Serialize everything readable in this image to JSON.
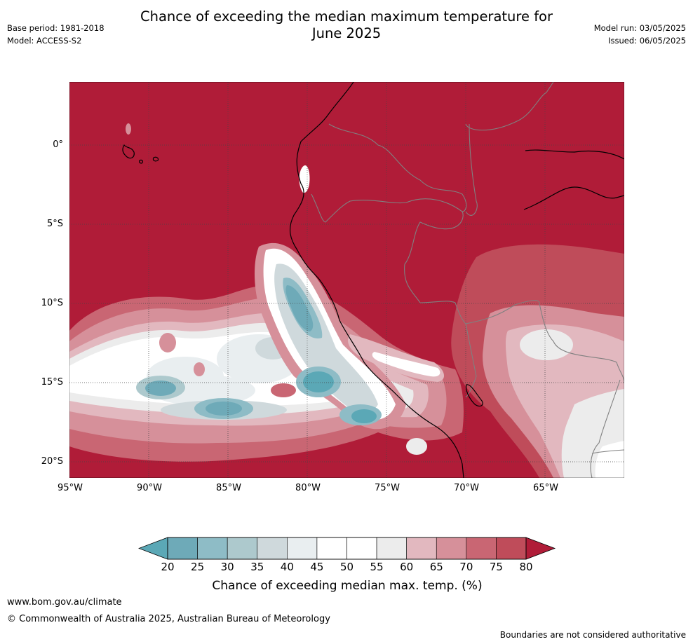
{
  "title": "Chance of exceeding the median maximum temperature for June 2025",
  "title_line1": "Chance of exceeding the median maximum temperature for",
  "title_line2": "June 2025",
  "meta": {
    "base_period": "Base period: 1981-2018",
    "model": "Model: ACCESS-S2",
    "model_run": "Model run: 03/05/2025",
    "issued": "Issued: 06/05/2025"
  },
  "map": {
    "lat_labels": [
      "0°",
      "5°S",
      "10°S",
      "15°S",
      "20°S"
    ],
    "lon_labels": [
      "95°W",
      "90°W",
      "85°W",
      "80°W",
      "75°W",
      "70°W",
      "65°W"
    ]
  },
  "colorbar": {
    "ticks": [
      "20",
      "25",
      "30",
      "35",
      "40",
      "45",
      "50",
      "55",
      "60",
      "65",
      "70",
      "75",
      "80"
    ],
    "colors": [
      "#5ba8b6",
      "#6eaab8",
      "#8ebcc6",
      "#adc9cd",
      "#cfd9dc",
      "#e9eef0",
      "#ffffff",
      "#ffffff",
      "#ececec",
      "#e2b8bf",
      "#d6909a",
      "#c96673",
      "#bf4c5a",
      "#b01c38"
    ],
    "label": "Chance of exceeding median max. temp. (%)"
  },
  "footer": {
    "url": "www.bom.gov.au/climate",
    "copyright": "© Commonwealth of Australia 2025, Australian Bureau of Meteorology",
    "disclaimer": "Boundaries are not considered authoritative"
  }
}
